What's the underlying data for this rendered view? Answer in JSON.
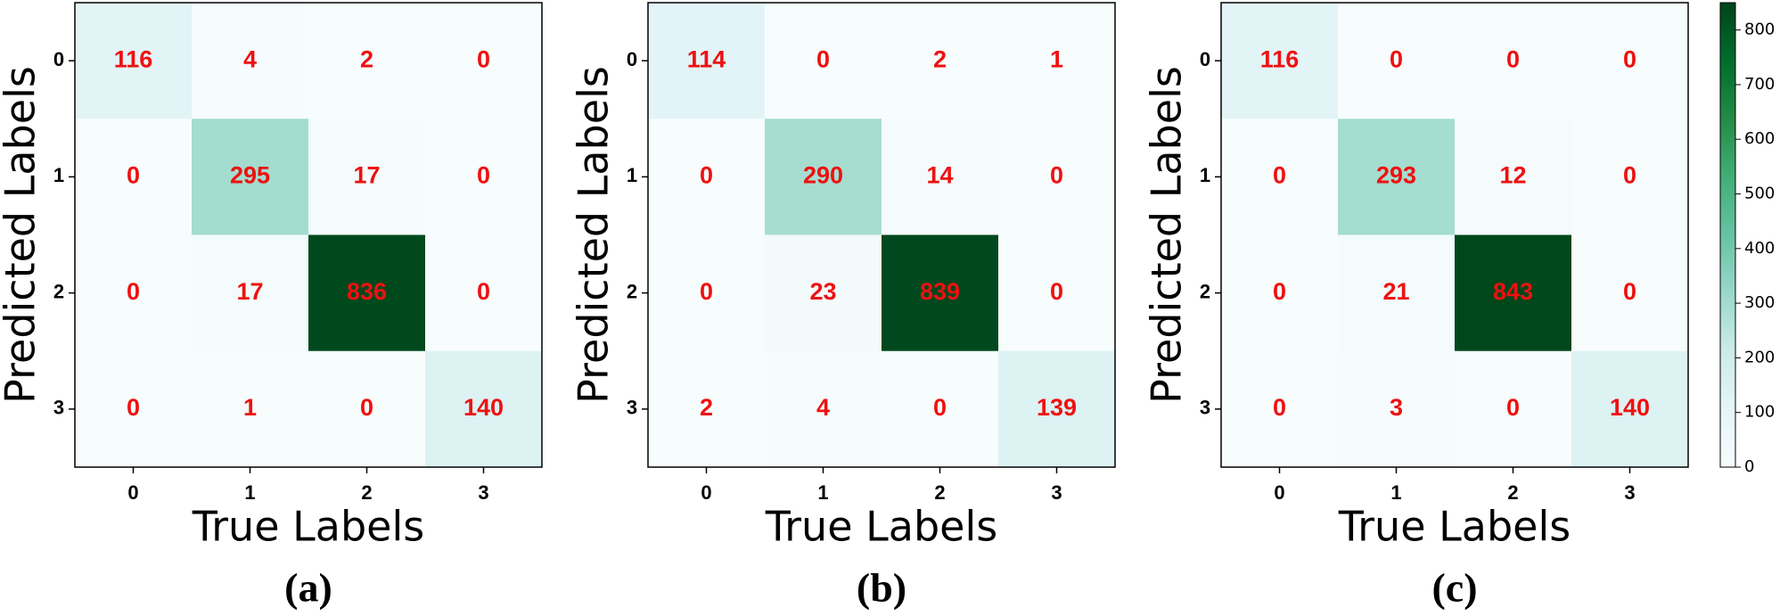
{
  "chart_data": [
    {
      "type": "heatmap",
      "caption": "(a)",
      "x_label": "True Labels",
      "y_label": "Predicted Labels",
      "x_categories": [
        "0",
        "1",
        "2",
        "3"
      ],
      "y_categories": [
        "0",
        "1",
        "2",
        "3"
      ],
      "values": [
        [
          116,
          4,
          2,
          0
        ],
        [
          0,
          295,
          17,
          0
        ],
        [
          0,
          17,
          836,
          0
        ],
        [
          0,
          1,
          0,
          140
        ]
      ],
      "clim": [
        0,
        850
      ],
      "colormap": [
        "#f7fcfd",
        "#e5f5f9",
        "#ccece6",
        "#99d8c9",
        "#66c2a4",
        "#41ae76",
        "#238b45",
        "#006d2c",
        "#00441b"
      ],
      "value_color": "#ee1111"
    },
    {
      "type": "heatmap",
      "caption": "(b)",
      "x_label": "True Labels",
      "y_label": "Predicted Labels",
      "x_categories": [
        "0",
        "1",
        "2",
        "3"
      ],
      "y_categories": [
        "0",
        "1",
        "2",
        "3"
      ],
      "values": [
        [
          114,
          0,
          2,
          1
        ],
        [
          0,
          290,
          14,
          0
        ],
        [
          0,
          23,
          839,
          0
        ],
        [
          2,
          4,
          0,
          139
        ]
      ],
      "clim": [
        0,
        850
      ],
      "colormap": [
        "#f7fcfd",
        "#e5f5f9",
        "#ccece6",
        "#99d8c9",
        "#66c2a4",
        "#41ae76",
        "#238b45",
        "#006d2c",
        "#00441b"
      ],
      "value_color": "#ee1111"
    },
    {
      "type": "heatmap",
      "caption": "(c)",
      "x_label": "True Labels",
      "y_label": "Predicted Labels",
      "x_categories": [
        "0",
        "1",
        "2",
        "3"
      ],
      "y_categories": [
        "0",
        "1",
        "2",
        "3"
      ],
      "values": [
        [
          116,
          0,
          0,
          0
        ],
        [
          0,
          293,
          12,
          0
        ],
        [
          0,
          21,
          843,
          0
        ],
        [
          0,
          3,
          0,
          140
        ]
      ],
      "clim": [
        0,
        850
      ],
      "colormap": [
        "#f7fcfd",
        "#e5f5f9",
        "#ccece6",
        "#99d8c9",
        "#66c2a4",
        "#41ae76",
        "#238b45",
        "#006d2c",
        "#00441b"
      ],
      "value_color": "#ee1111",
      "colorbar_ticks": [
        0,
        100,
        200,
        300,
        400,
        500,
        600,
        700,
        800
      ]
    }
  ]
}
